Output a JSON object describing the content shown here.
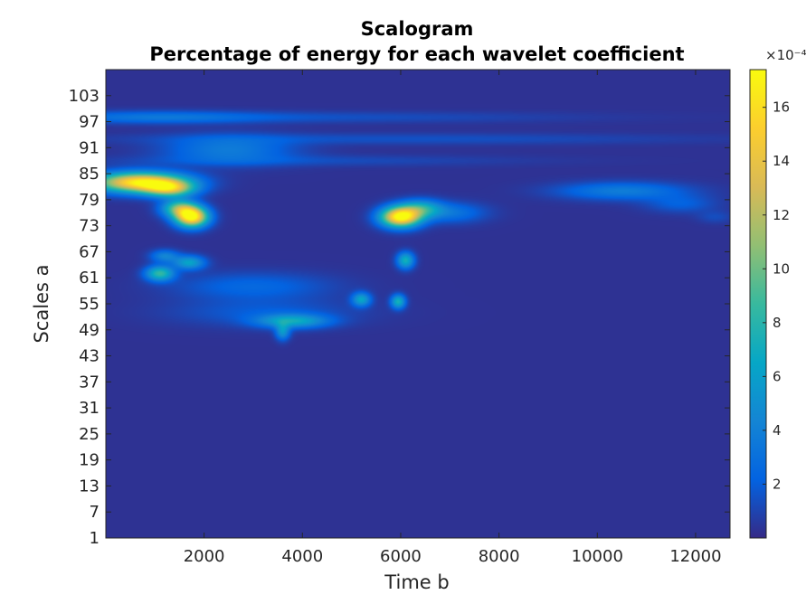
{
  "chart_data": {
    "type": "heatmap",
    "title": "Scalogram",
    "subtitle": "Percentage of energy for each wavelet coefficient",
    "xlabel": "Time b",
    "ylabel": "Scales a",
    "xlim": [
      1,
      12700
    ],
    "ylim": [
      1,
      109
    ],
    "x_ticks": [
      2000,
      4000,
      6000,
      8000,
      10000,
      12000
    ],
    "x_tick_labels": [
      "2000",
      "4000",
      "6000",
      "8000",
      "10000",
      "12000"
    ],
    "y_ticks": [
      1,
      7,
      13,
      19,
      25,
      31,
      37,
      43,
      49,
      55,
      61,
      67,
      73,
      79,
      85,
      91,
      97,
      103
    ],
    "y_tick_labels": [
      "1",
      "7",
      "13",
      "19",
      "25",
      "31",
      "37",
      "43",
      "49",
      "55",
      "61",
      "67",
      "73",
      "79",
      "85",
      "91",
      "97",
      "103"
    ],
    "colorbar": {
      "colormap": "parula",
      "range": [
        0,
        17.4
      ],
      "ticks": [
        2,
        4,
        6,
        8,
        10,
        12,
        14,
        16
      ],
      "tick_labels": [
        "2",
        "4",
        "6",
        "8",
        "10",
        "12",
        "14",
        "16"
      ],
      "exponent_label": "×10⁻⁴"
    },
    "grid": false,
    "energy_regions": [
      {
        "x": 700,
        "y": 83,
        "sx": 650,
        "sy": 1.6,
        "v": 16.5
      },
      {
        "x": 1300,
        "y": 81.5,
        "sx": 350,
        "sy": 1.3,
        "v": 10
      },
      {
        "x": 1750,
        "y": 75,
        "sx": 230,
        "sy": 1.6,
        "v": 17
      },
      {
        "x": 1500,
        "y": 77,
        "sx": 250,
        "sy": 1.4,
        "v": 9
      },
      {
        "x": 6000,
        "y": 75,
        "sx": 280,
        "sy": 1.6,
        "v": 17.4
      },
      {
        "x": 6400,
        "y": 77,
        "sx": 300,
        "sy": 1.4,
        "v": 6
      },
      {
        "x": 7000,
        "y": 76,
        "sx": 500,
        "sy": 1.6,
        "v": 3
      },
      {
        "x": 6100,
        "y": 65,
        "sx": 120,
        "sy": 1.3,
        "v": 7
      },
      {
        "x": 5950,
        "y": 55.5,
        "sx": 100,
        "sy": 1.1,
        "v": 7
      },
      {
        "x": 5200,
        "y": 56,
        "sx": 130,
        "sy": 1.1,
        "v": 6
      },
      {
        "x": 3800,
        "y": 51,
        "sx": 500,
        "sy": 1.1,
        "v": 6
      },
      {
        "x": 3600,
        "y": 48.5,
        "sx": 100,
        "sy": 1.3,
        "v": 5
      },
      {
        "x": 1100,
        "y": 62,
        "sx": 200,
        "sy": 1.2,
        "v": 8
      },
      {
        "x": 1700,
        "y": 64.5,
        "sx": 220,
        "sy": 1.1,
        "v": 6
      },
      {
        "x": 1200,
        "y": 66,
        "sx": 200,
        "sy": 1.0,
        "v": 4
      },
      {
        "x": 3000,
        "y": 59,
        "sx": 1100,
        "sy": 2.2,
        "v": 2.2
      },
      {
        "x": 3200,
        "y": 53,
        "sx": 1300,
        "sy": 2.2,
        "v": 1.6
      },
      {
        "x": 2500,
        "y": 90.5,
        "sx": 900,
        "sy": 2.2,
        "v": 3.4
      },
      {
        "x": 1000,
        "y": 98,
        "sx": 1500,
        "sy": 1.0,
        "v": 2.6
      },
      {
        "x": 4500,
        "y": 98,
        "sx": 3500,
        "sy": 0.9,
        "v": 1.1
      },
      {
        "x": 6000,
        "y": 93,
        "sx": 4000,
        "sy": 0.9,
        "v": 1.2
      },
      {
        "x": 4000,
        "y": 88,
        "sx": 3000,
        "sy": 0.9,
        "v": 1.0
      },
      {
        "x": 10500,
        "y": 81,
        "sx": 900,
        "sy": 1.4,
        "v": 3.5
      },
      {
        "x": 11700,
        "y": 78,
        "sx": 500,
        "sy": 1.4,
        "v": 1.8
      },
      {
        "x": 12400,
        "y": 75,
        "sx": 250,
        "sy": 1.0,
        "v": 1.0
      }
    ]
  }
}
